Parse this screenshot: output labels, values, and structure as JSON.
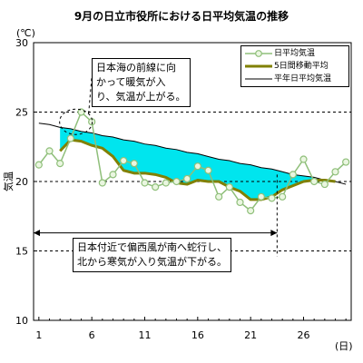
{
  "chart_data": {
    "type": "line",
    "title": "9月の日立市役所における日平均気温の推移",
    "ylabel": "気温",
    "yunit": "(℃)",
    "xunit": "(日)",
    "ylim": [
      10,
      30
    ],
    "xlim": [
      1,
      30
    ],
    "yticks": [
      10,
      15,
      20,
      25,
      30
    ],
    "xticks": [
      1,
      6,
      11,
      16,
      21,
      26
    ],
    "gridlines_y_dashed": [
      15,
      20,
      25
    ],
    "x": [
      1,
      2,
      3,
      4,
      5,
      6,
      7,
      8,
      9,
      10,
      11,
      12,
      13,
      14,
      15,
      16,
      17,
      18,
      19,
      20,
      21,
      22,
      23,
      24,
      25,
      26,
      27,
      28,
      29,
      30
    ],
    "series": [
      {
        "name": "日平均気温",
        "color": "#8fbf7a",
        "values": [
          21.2,
          22.2,
          21.3,
          23.1,
          25.0,
          24.3,
          19.9,
          20.5,
          21.5,
          21.3,
          19.9,
          19.6,
          19.9,
          20.0,
          20.2,
          21.1,
          20.8,
          18.9,
          19.6,
          18.5,
          17.9,
          18.9,
          18.8,
          18.9,
          20.5,
          21.6,
          20.0,
          19.8,
          20.7,
          21.4
        ]
      },
      {
        "name": "5日間移動平均",
        "color": "#808000",
        "values": [
          null,
          null,
          22.2,
          23.0,
          22.9,
          22.6,
          22.4,
          21.8,
          20.8,
          20.6,
          20.6,
          20.5,
          20.3,
          19.9,
          19.8,
          20.1,
          20.0,
          20.0,
          19.6,
          19.3,
          18.7,
          18.7,
          18.9,
          19.4,
          19.7,
          20.0,
          20.1,
          20.1,
          20.0,
          null
        ]
      },
      {
        "name": "平年日平均気温",
        "color": "#000000",
        "values": [
          24.2,
          24.1,
          23.9,
          23.8,
          23.6,
          23.5,
          23.3,
          23.2,
          23.0,
          22.9,
          22.7,
          22.6,
          22.4,
          22.3,
          22.1,
          22.0,
          21.8,
          21.6,
          21.5,
          21.3,
          21.2,
          21.0,
          20.9,
          20.7,
          20.5,
          20.4,
          20.3,
          20.1,
          20.0,
          19.8
        ]
      }
    ],
    "shading": {
      "below_normal_color": "#00e5ee",
      "above_normal_color": "#ffff00"
    },
    "annotations": [
      {
        "lines": [
          "日本海の前線に向",
          "かって暖気が入",
          "り、気温が上がる。"
        ]
      },
      {
        "lines": [
          "日本付近で偏西風が南へ蛇行し、",
          "北から寒気が入り気温が下がる。"
        ]
      }
    ]
  }
}
